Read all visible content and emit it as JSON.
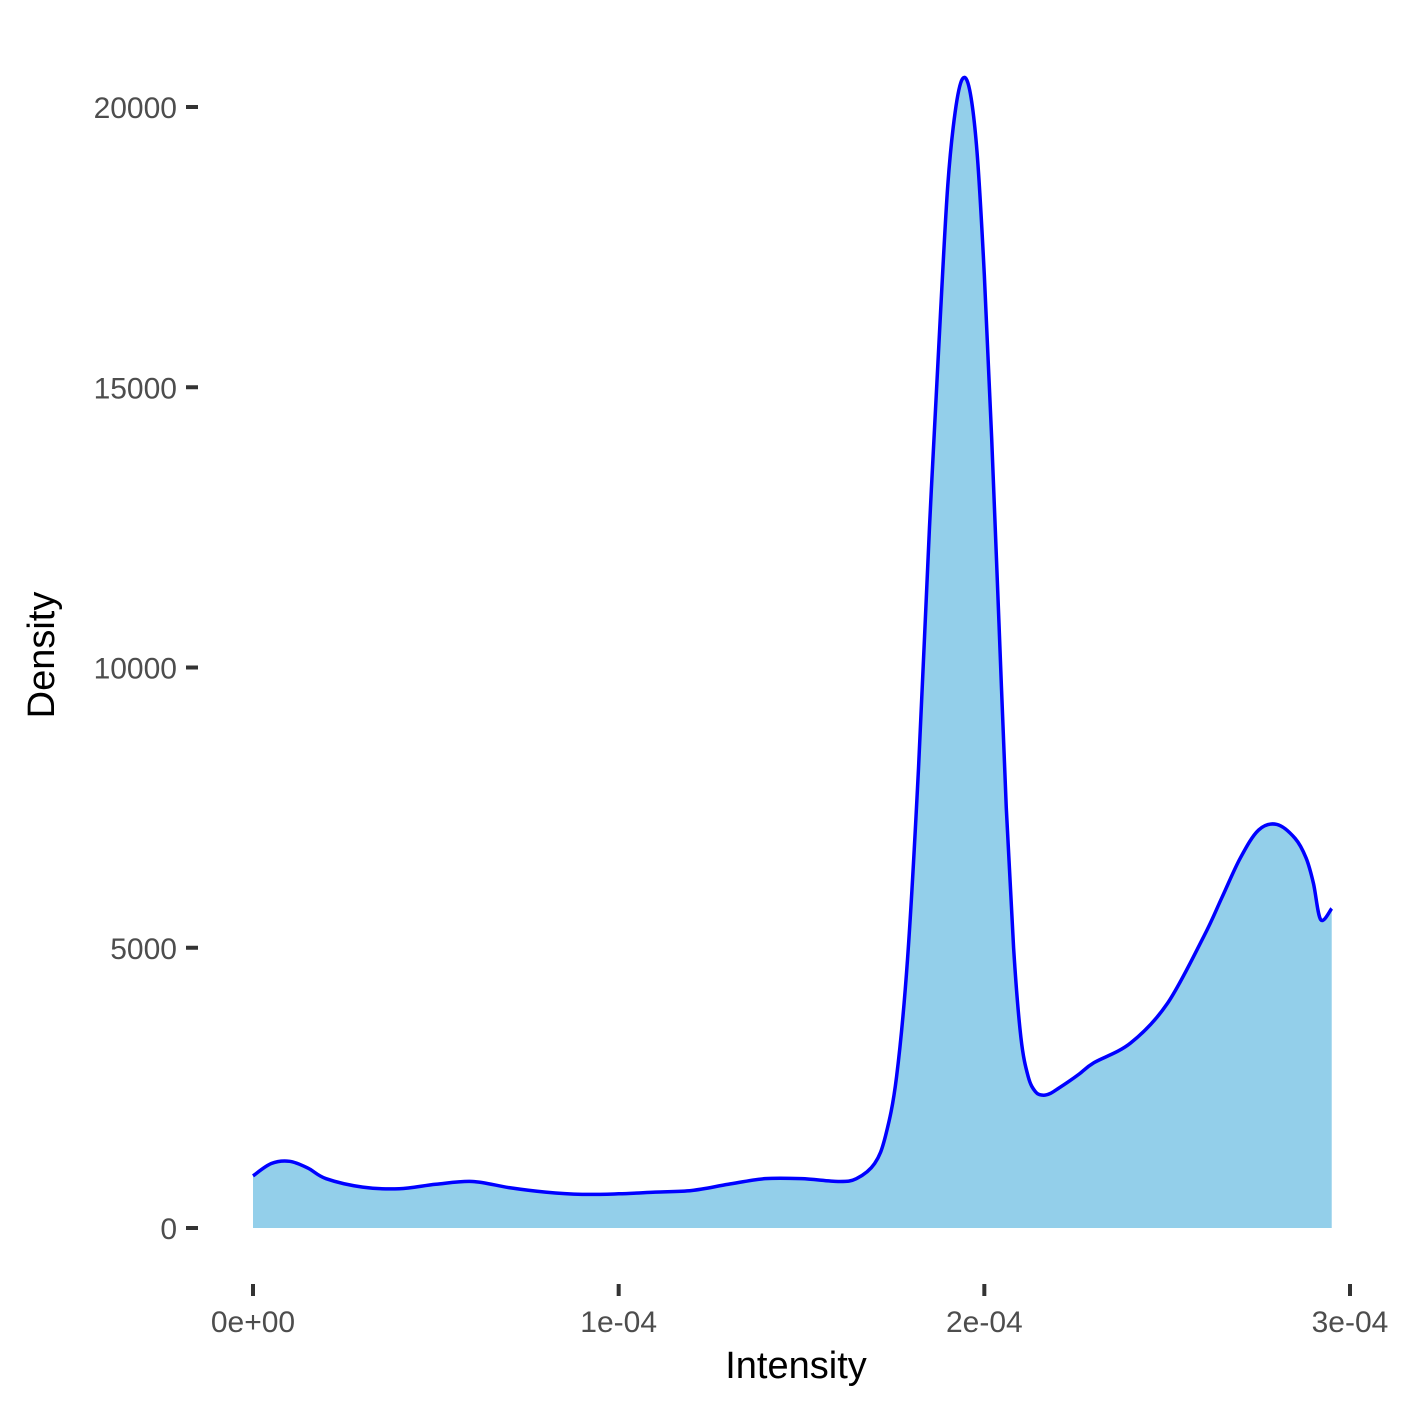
{
  "chart_data": {
    "type": "area",
    "title": "",
    "xlabel": "Intensity",
    "ylabel": "Density",
    "xlim": [
      0,
      0.000295
    ],
    "ylim": [
      0,
      20500
    ],
    "x_ticks": [
      {
        "value": 0,
        "label": "0e+00"
      },
      {
        "value": 0.0001,
        "label": "1e-04"
      },
      {
        "value": 0.0002,
        "label": "2e-04"
      },
      {
        "value": 0.0003,
        "label": "3e-04"
      }
    ],
    "y_ticks": [
      {
        "value": 0,
        "label": "0"
      },
      {
        "value": 5000,
        "label": "5000"
      },
      {
        "value": 10000,
        "label": "10000"
      },
      {
        "value": 15000,
        "label": "15000"
      },
      {
        "value": 20000,
        "label": "20000"
      }
    ],
    "grid": false,
    "legend": "none",
    "fill_color": "#93CFEA",
    "line_color": "#0000FF",
    "series": [
      {
        "x": [
          0,
          5e-06,
          1e-05,
          1.5e-05,
          2e-05,
          3e-05,
          4e-05,
          5e-05,
          6e-05,
          7e-05,
          8e-05,
          9e-05,
          0.0001,
          0.00011,
          0.00012,
          0.00013,
          0.00014,
          0.00015,
          0.00016,
          0.000165,
          0.00017,
          0.000173,
          0.000176,
          0.000179,
          0.000182,
          0.000185,
          0.000188,
          0.00019,
          0.000192,
          0.000194,
          0.000196,
          0.000198,
          0.0002,
          0.000202,
          0.000204,
          0.000206,
          0.000208,
          0.00021,
          0.000212,
          0.000214,
          0.000216,
          0.000218,
          0.00022,
          0.000223,
          0.000226,
          0.00023,
          0.00024,
          0.00025,
          0.00026,
          0.000265,
          0.00027,
          0.000275,
          0.00028,
          0.000285,
          0.000288,
          0.00029,
          0.000292,
          0.000295
        ],
        "y": [
          930,
          1150,
          1190,
          1070,
          880,
          730,
          700,
          780,
          830,
          720,
          640,
          600,
          610,
          640,
          670,
          780,
          880,
          880,
          830,
          880,
          1150,
          1650,
          2700,
          4800,
          8200,
          12500,
          16300,
          18600,
          19900,
          20500,
          20300,
          19200,
          17000,
          14100,
          10800,
          7500,
          5000,
          3400,
          2700,
          2430,
          2370,
          2400,
          2480,
          2610,
          2750,
          2950,
          3300,
          4000,
          5200,
          5900,
          6600,
          7100,
          7200,
          6950,
          6600,
          6150,
          5500,
          5700
        ]
      }
    ]
  }
}
